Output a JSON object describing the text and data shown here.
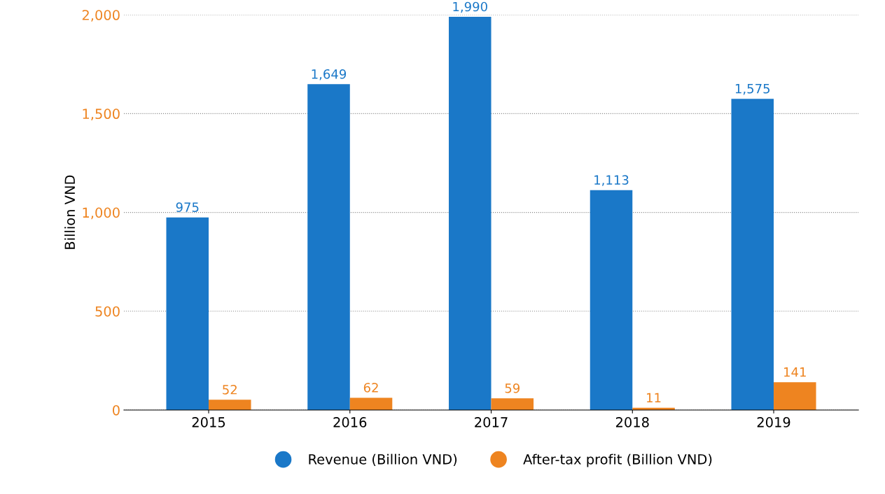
{
  "chart_data": {
    "type": "bar",
    "ylabel": "Billion VND",
    "categories": [
      "2015",
      "2016",
      "2017",
      "2018",
      "2019"
    ],
    "series": [
      {
        "name": "Revenue (Billion VND)",
        "color": "#1a78c8",
        "values": [
          975,
          1649,
          1990,
          1113,
          1575
        ],
        "value_labels": [
          "975",
          "1,649",
          "1,990",
          "1,113",
          "1,575"
        ]
      },
      {
        "name": "After-tax profit (Billion VND)",
        "color": "#ee8420",
        "values": [
          52,
          62,
          59,
          11,
          141
        ],
        "value_labels": [
          "52",
          "62",
          "59",
          "11",
          "141"
        ]
      }
    ],
    "ylim": [
      0,
      2000
    ],
    "yticks": [
      {
        "value": 0,
        "label": "0"
      },
      {
        "value": 500,
        "label": "500"
      },
      {
        "value": 1000,
        "label": "1,000"
      },
      {
        "value": 1500,
        "label": "1,500"
      },
      {
        "value": 2000,
        "label": "2,000"
      }
    ],
    "grid": "y",
    "legend": "bottom"
  }
}
